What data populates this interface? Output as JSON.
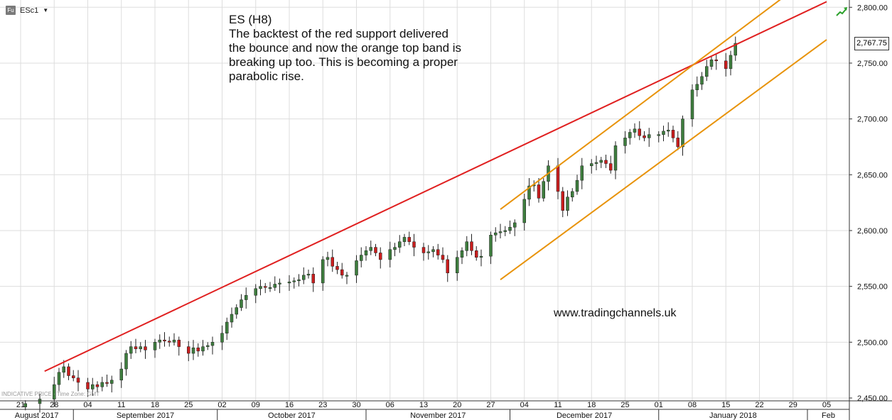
{
  "header": {
    "symbol_badge": "Fu",
    "symbol": "ESc1"
  },
  "annotation": {
    "title": "ES (H8)",
    "body": "The backtest of the red support delivered the bounce and now the orange top band is breaking up too. This is becoming a proper parabolic rise."
  },
  "watermark": "www.tradingchannels.uk",
  "footer_note": "INDICATIVE PRICE · Time Zone: GMT",
  "last_price_label": "2,767.75",
  "colors": {
    "candle_up": "#3e7d3e",
    "candle_down": "#c81e1e",
    "support_line": "#e02020",
    "channel_lines": "#e8930a",
    "grid": "#dddddd",
    "trend_icon": "#2aa02a"
  },
  "icons": {
    "trend": "trend-up-arrow-icon"
  },
  "chart_data": {
    "type": "candlestick",
    "title": "ES (H8)",
    "ylim": [
      2450,
      2820
    ],
    "y_ticks": [
      "2,450.00",
      "2,500.00",
      "2,550.00",
      "2,600.00",
      "2,650.00",
      "2,700.00",
      "2,750.00",
      "2,800.00"
    ],
    "y_tick_values": [
      2450,
      2500,
      2550,
      2600,
      2650,
      2700,
      2750,
      2800
    ],
    "x_day_ticks": [
      "21",
      "28",
      "04",
      "11",
      "18",
      "25",
      "02",
      "09",
      "16",
      "23",
      "30",
      "06",
      "13",
      "20",
      "27",
      "04",
      "11",
      "18",
      "25",
      "01",
      "08",
      "15",
      "22",
      "29",
      "05"
    ],
    "x_month_labels": [
      "August 2017",
      "September 2017",
      "October 2017",
      "November 2017",
      "December 2017",
      "January 2018",
      "Feb"
    ],
    "x_range_days": [
      0,
      168
    ],
    "x_day_offsets": [
      0,
      7,
      14,
      21,
      28,
      35,
      42,
      49,
      56,
      63,
      70,
      77,
      84,
      91,
      98,
      105,
      112,
      119,
      126,
      133,
      140,
      147,
      154,
      161,
      168
    ],
    "month_start_offsets": [
      -20,
      11,
      41,
      72,
      102,
      133,
      164
    ],
    "last_price": 2767.75,
    "grid": true,
    "series": [
      {
        "type": "ohlc-daily-closes",
        "points": [
          [
            1,
            2445
          ],
          [
            4,
            2449
          ],
          [
            7,
            2462
          ],
          [
            8,
            2473
          ],
          [
            9,
            2478
          ],
          [
            10,
            2470
          ],
          [
            11,
            2468
          ],
          [
            12,
            2464
          ],
          [
            14,
            2458
          ],
          [
            15,
            2462
          ],
          [
            16,
            2460
          ],
          [
            17,
            2464
          ],
          [
            18,
            2463
          ],
          [
            19,
            2466
          ],
          [
            21,
            2476
          ],
          [
            22,
            2490
          ],
          [
            23,
            2496
          ],
          [
            24,
            2494
          ],
          [
            25,
            2496
          ],
          [
            26,
            2493
          ],
          [
            28,
            2500
          ],
          [
            29,
            2502
          ],
          [
            30,
            2501
          ],
          [
            31,
            2500
          ],
          [
            32,
            2502
          ],
          [
            33,
            2496
          ],
          [
            35,
            2490
          ],
          [
            36,
            2495
          ],
          [
            37,
            2492
          ],
          [
            38,
            2496
          ],
          [
            39,
            2497
          ],
          [
            40,
            2500
          ],
          [
            42,
            2508
          ],
          [
            43,
            2518
          ],
          [
            44,
            2525
          ],
          [
            45,
            2531
          ],
          [
            46,
            2538
          ],
          [
            47,
            2542
          ],
          [
            49,
            2548
          ],
          [
            50,
            2550
          ],
          [
            51,
            2549
          ],
          [
            52,
            2549
          ],
          [
            53,
            2552
          ],
          [
            54,
            2553
          ],
          [
            56,
            2554
          ],
          [
            57,
            2555
          ],
          [
            58,
            2556
          ],
          [
            59,
            2560
          ],
          [
            60,
            2561
          ],
          [
            61,
            2553
          ],
          [
            63,
            2574
          ],
          [
            64,
            2576
          ],
          [
            65,
            2568
          ],
          [
            66,
            2565
          ],
          [
            67,
            2560
          ],
          [
            68,
            2560
          ],
          [
            70,
            2573
          ],
          [
            71,
            2578
          ],
          [
            72,
            2582
          ],
          [
            73,
            2585
          ],
          [
            74,
            2580
          ],
          [
            75,
            2574
          ],
          [
            77,
            2583
          ],
          [
            78,
            2585
          ],
          [
            79,
            2590
          ],
          [
            80,
            2594
          ],
          [
            81,
            2590
          ],
          [
            82,
            2585
          ],
          [
            84,
            2580
          ],
          [
            85,
            2581
          ],
          [
            86,
            2583
          ],
          [
            87,
            2578
          ],
          [
            88,
            2574
          ],
          [
            89,
            2562
          ],
          [
            91,
            2576
          ],
          [
            92,
            2582
          ],
          [
            93,
            2590
          ],
          [
            94,
            2582
          ],
          [
            95,
            2576
          ],
          [
            96,
            2577
          ],
          [
            98,
            2596
          ],
          [
            99,
            2598
          ],
          [
            100,
            2599
          ],
          [
            101,
            2600
          ],
          [
            102,
            2603
          ],
          [
            103,
            2607
          ],
          [
            105,
            2628
          ],
          [
            106,
            2640
          ],
          [
            107,
            2641
          ],
          [
            108,
            2629
          ],
          [
            109,
            2644
          ],
          [
            110,
            2658
          ],
          [
            112,
            2635
          ],
          [
            113,
            2618
          ],
          [
            114,
            2630
          ],
          [
            115,
            2635
          ],
          [
            116,
            2645
          ],
          [
            117,
            2658
          ],
          [
            119,
            2660
          ],
          [
            120,
            2661
          ],
          [
            121,
            2663
          ],
          [
            122,
            2660
          ],
          [
            123,
            2654
          ],
          [
            124,
            2676
          ],
          [
            126,
            2683
          ],
          [
            127,
            2688
          ],
          [
            128,
            2691
          ],
          [
            129,
            2685
          ],
          [
            130,
            2683
          ],
          [
            131,
            2686
          ],
          [
            133,
            2686
          ],
          [
            134,
            2689
          ],
          [
            135,
            2690
          ],
          [
            136,
            2683
          ],
          [
            137,
            2675
          ],
          [
            138,
            2700
          ],
          [
            140,
            2726
          ],
          [
            141,
            2731
          ],
          [
            142,
            2738
          ],
          [
            143,
            2747
          ],
          [
            144,
            2753
          ],
          [
            145,
            2752
          ],
          [
            147,
            2745
          ],
          [
            148,
            2757
          ],
          [
            149,
            2767.75
          ]
        ]
      }
    ],
    "lines": [
      {
        "name": "",
        "color": "red",
        "from": [
          5,
          2474
        ],
        "to": [
          168,
          2805
        ]
      },
      {
        "name": "",
        "color": "orange",
        "from": [
          100,
          2619
        ],
        "to": [
          168,
          2838
        ]
      },
      {
        "name": "",
        "color": "orange",
        "from": [
          100,
          2556
        ],
        "to": [
          168,
          2771
        ]
      }
    ]
  }
}
